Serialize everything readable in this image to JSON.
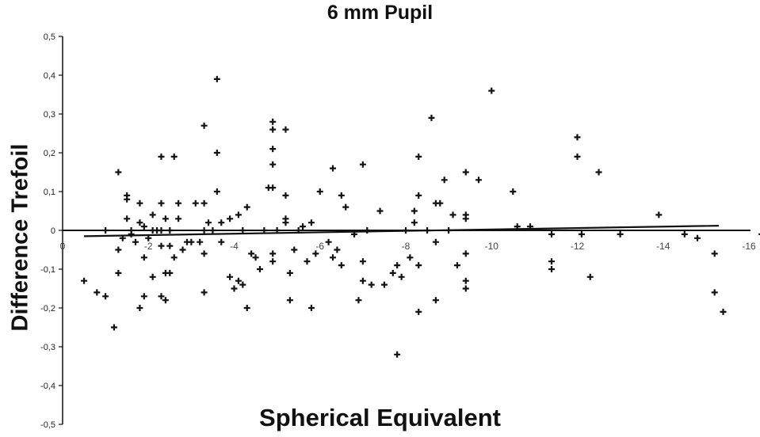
{
  "chart_data": {
    "type": "scatter",
    "title": "6 mm Pupil",
    "xlabel": "Spherical Equivalent",
    "ylabel": "Difference Trefoil",
    "xlim": [
      0,
      -16
    ],
    "ylim": [
      -0.5,
      0.5
    ],
    "x_ticks": [
      {
        "value": 0,
        "label": "0"
      },
      {
        "value": -2,
        "label": "-2"
      },
      {
        "value": -4,
        "label": "-4"
      },
      {
        "value": -6,
        "label": "-6"
      },
      {
        "value": -8,
        "label": "-8"
      },
      {
        "value": -10,
        "label": "-10"
      },
      {
        "value": -12,
        "label": "-12"
      },
      {
        "value": -14,
        "label": "-14"
      },
      {
        "value": -16,
        "label": "-16"
      }
    ],
    "y_ticks": [
      {
        "value": 0.5,
        "label": "0,5"
      },
      {
        "value": 0.4,
        "label": "0,4"
      },
      {
        "value": 0.3,
        "label": "0,3"
      },
      {
        "value": 0.2,
        "label": "0,2"
      },
      {
        "value": 0.1,
        "label": "0,1"
      },
      {
        "value": 0,
        "label": "0"
      },
      {
        "value": -0.1,
        "label": "-0,1"
      },
      {
        "value": -0.2,
        "label": "-0,2"
      },
      {
        "value": -0.3,
        "label": "-0,3"
      },
      {
        "value": -0.4,
        "label": "-0,4"
      },
      {
        "value": -0.5,
        "label": "-0,5"
      }
    ],
    "grid": false,
    "legend": "none",
    "trendline": {
      "x": [
        -0.5,
        -15.3
      ],
      "y": [
        -0.015,
        0.012
      ]
    },
    "series": [
      {
        "marker": "plus",
        "color": "#111111",
        "points": [
          [
            -0.5,
            -0.13
          ],
          [
            -0.8,
            -0.16
          ],
          [
            -1.0,
            -0.17
          ],
          [
            -1.0,
            0.0
          ],
          [
            -1.2,
            -0.25
          ],
          [
            -1.3,
            -0.05
          ],
          [
            -1.3,
            -0.11
          ],
          [
            -1.3,
            0.15
          ],
          [
            -1.4,
            -0.02
          ],
          [
            -1.5,
            0.08
          ],
          [
            -1.5,
            0.09
          ],
          [
            -1.5,
            0.03
          ],
          [
            -1.6,
            -0.01
          ],
          [
            -1.6,
            0.0
          ],
          [
            -1.7,
            -0.03
          ],
          [
            -1.8,
            0.02
          ],
          [
            -1.8,
            -0.2
          ],
          [
            -1.8,
            0.07
          ],
          [
            -1.9,
            -0.17
          ],
          [
            -1.9,
            -0.07
          ],
          [
            -1.9,
            0.01
          ],
          [
            -2.0,
            -0.02
          ],
          [
            -2.1,
            0.04
          ],
          [
            -2.1,
            -0.12
          ],
          [
            -2.1,
            0.0
          ],
          [
            -2.2,
            0.0
          ],
          [
            -2.3,
            -0.17
          ],
          [
            -2.3,
            -0.04
          ],
          [
            -2.3,
            0.0
          ],
          [
            -2.3,
            0.19
          ],
          [
            -2.3,
            0.07
          ],
          [
            -2.4,
            -0.18
          ],
          [
            -2.4,
            0.03
          ],
          [
            -2.4,
            -0.11
          ],
          [
            -2.5,
            -0.11
          ],
          [
            -2.5,
            -0.04
          ],
          [
            -2.5,
            0.0
          ],
          [
            -2.6,
            0.19
          ],
          [
            -2.6,
            -0.07
          ],
          [
            -2.7,
            0.03
          ],
          [
            -2.7,
            0.07
          ],
          [
            -2.8,
            -0.05
          ],
          [
            -2.9,
            -0.03
          ],
          [
            -3.0,
            -0.03
          ],
          [
            -3.1,
            0.07
          ],
          [
            -3.2,
            -0.03
          ],
          [
            -3.3,
            0.0
          ],
          [
            -3.3,
            0.27
          ],
          [
            -3.3,
            -0.16
          ],
          [
            -3.3,
            0.07
          ],
          [
            -3.3,
            -0.06
          ],
          [
            -3.4,
            0.02
          ],
          [
            -3.5,
            0.0
          ],
          [
            -3.6,
            0.39
          ],
          [
            -3.6,
            0.2
          ],
          [
            -3.6,
            0.1
          ],
          [
            -3.7,
            0.02
          ],
          [
            -3.7,
            -0.03
          ],
          [
            -3.9,
            0.03
          ],
          [
            -3.9,
            -0.12
          ],
          [
            -4.0,
            -0.15
          ],
          [
            -4.1,
            -0.13
          ],
          [
            -4.1,
            0.04
          ],
          [
            -4.2,
            -0.14
          ],
          [
            -4.2,
            0.0
          ],
          [
            -4.3,
            -0.2
          ],
          [
            -4.3,
            0.06
          ],
          [
            -4.4,
            -0.06
          ],
          [
            -4.5,
            -0.07
          ],
          [
            -4.6,
            -0.1
          ],
          [
            -4.7,
            -0.0
          ],
          [
            -4.8,
            0.11
          ],
          [
            -4.9,
            0.11
          ],
          [
            -4.9,
            0.28
          ],
          [
            -4.9,
            0.26
          ],
          [
            -4.9,
            0.21
          ],
          [
            -4.9,
            0.17
          ],
          [
            -4.9,
            -0.08
          ],
          [
            -4.9,
            -0.06
          ],
          [
            -5.0,
            0.0
          ],
          [
            -5.2,
            0.09
          ],
          [
            -5.2,
            0.03
          ],
          [
            -5.2,
            0.26
          ],
          [
            -5.2,
            0.02
          ],
          [
            -5.3,
            -0.18
          ],
          [
            -5.3,
            -0.11
          ],
          [
            -5.4,
            -0.05
          ],
          [
            -5.5,
            0.0
          ],
          [
            -5.6,
            0.01
          ],
          [
            -5.7,
            -0.08
          ],
          [
            -5.8,
            -0.2
          ],
          [
            -5.8,
            0.02
          ],
          [
            -5.9,
            -0.06
          ],
          [
            -6.0,
            0.1
          ],
          [
            -6.2,
            -0.03
          ],
          [
            -6.3,
            0.16
          ],
          [
            -6.3,
            -0.07
          ],
          [
            -6.4,
            -0.05
          ],
          [
            -6.5,
            -0.09
          ],
          [
            -6.5,
            0.09
          ],
          [
            -6.6,
            0.06
          ],
          [
            -6.8,
            -0.01
          ],
          [
            -6.9,
            -0.18
          ],
          [
            -7.0,
            0.17
          ],
          [
            -7.0,
            -0.08
          ],
          [
            -7.0,
            -0.13
          ],
          [
            -7.1,
            0.0
          ],
          [
            -7.2,
            -0.14
          ],
          [
            -7.4,
            0.05
          ],
          [
            -7.5,
            -0.14
          ],
          [
            -7.7,
            -0.11
          ],
          [
            -7.8,
            -0.32
          ],
          [
            -7.8,
            -0.09
          ],
          [
            -7.9,
            -0.12
          ],
          [
            -8.0,
            0.0
          ],
          [
            -8.1,
            -0.07
          ],
          [
            -8.2,
            0.05
          ],
          [
            -8.2,
            0.02
          ],
          [
            -8.3,
            0.19
          ],
          [
            -8.3,
            -0.21
          ],
          [
            -8.3,
            -0.09
          ],
          [
            -8.3,
            0.09
          ],
          [
            -8.5,
            0.0
          ],
          [
            -8.6,
            0.29
          ],
          [
            -8.7,
            -0.18
          ],
          [
            -8.7,
            -0.03
          ],
          [
            -8.7,
            0.07
          ],
          [
            -8.8,
            0.07
          ],
          [
            -8.9,
            0.13
          ],
          [
            -9.0,
            -0.0
          ],
          [
            -9.1,
            0.04
          ],
          [
            -9.2,
            -0.09
          ],
          [
            -9.4,
            0.15
          ],
          [
            -9.4,
            0.04
          ],
          [
            -9.4,
            0.03
          ],
          [
            -9.4,
            -0.06
          ],
          [
            -9.4,
            -0.13
          ],
          [
            -9.4,
            -0.15
          ],
          [
            -9.7,
            0.13
          ],
          [
            -10.0,
            0.36
          ],
          [
            -10.5,
            0.1
          ],
          [
            -10.6,
            0.01
          ],
          [
            -10.9,
            0.01
          ],
          [
            -11.4,
            -0.01
          ],
          [
            -11.4,
            -0.08
          ],
          [
            -11.4,
            -0.1
          ],
          [
            -12.0,
            0.24
          ],
          [
            -12.0,
            0.19
          ],
          [
            -12.1,
            -0.01
          ],
          [
            -12.3,
            -0.12
          ],
          [
            -12.5,
            0.15
          ],
          [
            -13.0,
            -0.01
          ],
          [
            -13.9,
            0.04
          ],
          [
            -14.5,
            -0.01
          ],
          [
            -14.8,
            -0.02
          ],
          [
            -15.2,
            -0.06
          ],
          [
            -15.2,
            -0.16
          ],
          [
            -15.4,
            -0.21
          ],
          [
            -16.3,
            -0.01
          ]
        ]
      }
    ]
  }
}
